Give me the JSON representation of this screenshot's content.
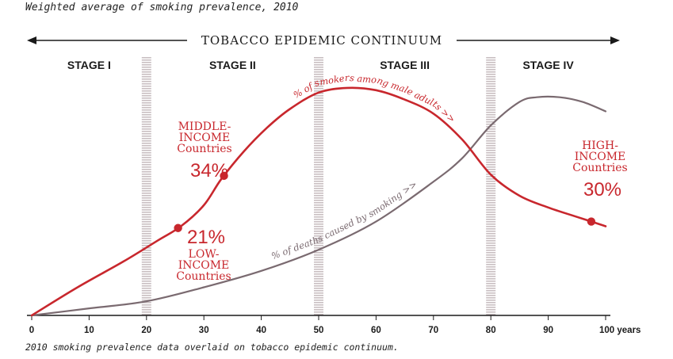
{
  "subtitle": "Weighted average of smoking prevalence, 2010",
  "caption": "2010 smoking prevalence data overlaid on tobacco epidemic continuum.",
  "continuum_label": "TOBACCO EPIDEMIC CONTINUUM",
  "stages": [
    {
      "label": "STAGE I",
      "x_center": 10
    },
    {
      "label": "STAGE II",
      "x_center": 35
    },
    {
      "label": "STAGE III",
      "x_center": 65
    },
    {
      "label": "STAGE IV",
      "x_center": 90
    }
  ],
  "stage_boundaries": [
    20,
    50,
    80
  ],
  "annotations": {
    "middle": {
      "lines": [
        "MIDDLE-",
        "INCOME",
        "Countries"
      ],
      "pct": "34%"
    },
    "low": {
      "lines": [
        "LOW-",
        "INCOME",
        "Countries"
      ],
      "pct": "21%"
    },
    "high": {
      "lines": [
        "HIGH-",
        "INCOME",
        "Countries"
      ],
      "pct": "30%"
    }
  },
  "colors": {
    "red": "#c8272d",
    "gray": "#7a6a70",
    "stage_bar": "#c9bfc2",
    "axis": "#1a1a1a"
  },
  "chart_data": {
    "type": "line",
    "title": "",
    "subtitle": "Weighted average of smoking prevalence, 2010",
    "xlabel": "years",
    "x_ticks": [
      0,
      10,
      20,
      30,
      40,
      50,
      60,
      70,
      80,
      90,
      100
    ],
    "x_tick_labels": [
      "0",
      "10",
      "20",
      "30",
      "40",
      "50",
      "60",
      "70",
      "80",
      "90",
      "100 years"
    ],
    "xlim": [
      0,
      103
    ],
    "ylim": [
      0,
      1
    ],
    "grid": false,
    "series": [
      {
        "name": "% of smokers among male adults >>",
        "color": "#c8272d",
        "x": [
          0,
          8,
          16,
          22,
          26,
          30,
          33,
          37,
          41,
          45,
          50,
          55,
          60,
          65,
          70,
          75,
          80,
          85,
          90,
          95,
          100
        ],
        "y": [
          0.0,
          0.12,
          0.23,
          0.32,
          0.38,
          0.47,
          0.58,
          0.7,
          0.8,
          0.88,
          0.95,
          0.97,
          0.96,
          0.92,
          0.86,
          0.75,
          0.6,
          0.51,
          0.46,
          0.42,
          0.38
        ]
      },
      {
        "name": "% of deaths caused by smoking >>",
        "color": "#7a6a70",
        "x": [
          0,
          10,
          20,
          30,
          40,
          50,
          60,
          70,
          75,
          80,
          85,
          88,
          92,
          96,
          100
        ],
        "y": [
          0.0,
          0.03,
          0.06,
          0.12,
          0.19,
          0.28,
          0.4,
          0.57,
          0.67,
          0.81,
          0.91,
          0.93,
          0.93,
          0.91,
          0.87
        ]
      }
    ],
    "points": [
      {
        "label": "21%",
        "series": 0,
        "x": 25.5
      },
      {
        "label": "34%",
        "series": 0,
        "x": 33.5
      },
      {
        "label": "30%",
        "series": 0,
        "x": 97.5
      }
    ]
  }
}
